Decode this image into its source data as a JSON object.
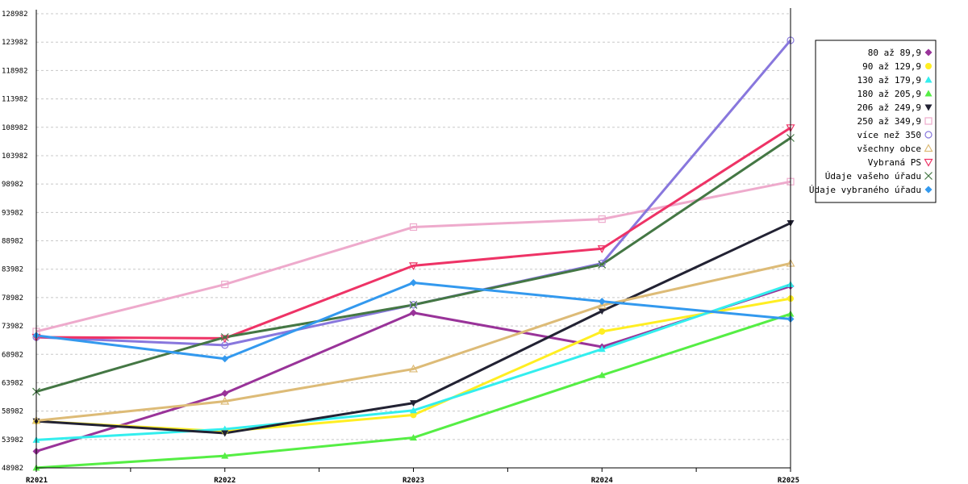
{
  "chart_data": {
    "type": "line",
    "categories": [
      "R2021",
      "R2022",
      "R2023",
      "R2024",
      "R2025"
    ],
    "y_ticks": [
      "48982",
      "53982",
      "58982",
      "63982",
      "68982",
      "73982",
      "78982",
      "83982",
      "88982",
      "93982",
      "98982",
      "103982",
      "108982",
      "113982",
      "118982",
      "123982",
      "128982"
    ],
    "ylim": [
      48982,
      128982
    ],
    "grid": true,
    "legend_position": "right",
    "series": [
      {
        "name": "80 až 89,9",
        "color": "#993399",
        "marker": "diamond",
        "values": [
          51900,
          62100,
          76300,
          70300,
          81000
        ]
      },
      {
        "name": "90 až 129,9",
        "color": "#ffee22",
        "marker": "circle",
        "values": [
          57200,
          55400,
          58300,
          73000,
          78800
        ]
      },
      {
        "name": "130 až 179,9",
        "color": "#33eeee",
        "marker": "triangle-up",
        "values": [
          53900,
          55800,
          59100,
          69900,
          81300
        ]
      },
      {
        "name": "180 až 205,9",
        "color": "#55ee44",
        "marker": "triangle-up",
        "values": [
          49000,
          51100,
          54300,
          65300,
          76100
        ]
      },
      {
        "name": "206 až 249,9",
        "color": "#222233",
        "marker": "triangle-down",
        "values": [
          57200,
          55100,
          60400,
          76600,
          92100
        ]
      },
      {
        "name": "250 až 349,9",
        "color": "#eeaacc",
        "marker": "square",
        "values": [
          73000,
          81300,
          91400,
          92800,
          99400
        ]
      },
      {
        "name": "více než 350",
        "color": "#8877dd",
        "marker": "circle-open",
        "values": [
          72000,
          70600,
          77700,
          85000,
          124300
        ]
      },
      {
        "name": "všechny obce",
        "color": "#ddbb77",
        "marker": "triangle-up-open",
        "values": [
          57300,
          60700,
          66400,
          77600,
          85000
        ]
      },
      {
        "name": "Vybraná PS",
        "color": "#ee3366",
        "marker": "triangle-down-open",
        "values": [
          72000,
          71800,
          84600,
          87600,
          108900
        ]
      },
      {
        "name": "Údaje vašeho úřadu",
        "color": "#447744",
        "marker": "cross",
        "values": [
          62400,
          72000,
          77700,
          84800,
          107100
        ]
      },
      {
        "name": "Údaje vybraného úřadu",
        "color": "#3399ee",
        "marker": "diamond",
        "values": [
          72300,
          68200,
          81600,
          78300,
          75200
        ]
      }
    ]
  }
}
